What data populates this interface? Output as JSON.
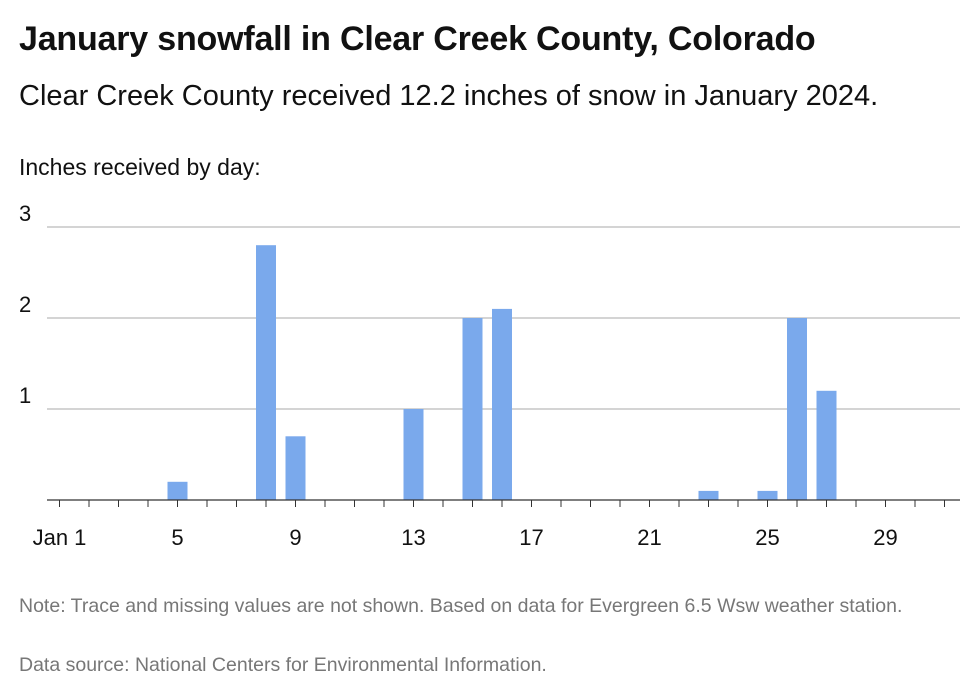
{
  "header": {
    "title": "January snowfall in Clear Creek County, Colorado",
    "subtitle": "Clear Creek County received 12.2 inches of snow in January 2024.",
    "caption": "Inches received by day:"
  },
  "footer": {
    "note": "Note: Trace and missing values are not shown. Based on data for Evergreen 6.5 Wsw weather station.",
    "source": "Data source: National Centers for Environmental Information."
  },
  "colors": {
    "bar": "#7aa9ec",
    "grid": "#bbbbbb",
    "axis": "#333333",
    "text": "#111111",
    "muted": "#777777"
  },
  "chart_data": {
    "type": "bar",
    "x": [
      1,
      2,
      3,
      4,
      5,
      6,
      7,
      8,
      9,
      10,
      11,
      12,
      13,
      14,
      15,
      16,
      17,
      18,
      19,
      20,
      21,
      22,
      23,
      24,
      25,
      26,
      27,
      28,
      29,
      30,
      31
    ],
    "values": [
      0,
      0,
      0,
      0,
      0.2,
      0,
      0,
      2.8,
      0.7,
      0,
      0,
      0,
      1.0,
      0,
      2.0,
      2.1,
      0,
      0,
      0,
      0,
      0,
      0,
      0.1,
      0,
      0.1,
      2.0,
      1.2,
      0,
      0,
      0,
      0
    ],
    "xticks": [
      1,
      5,
      9,
      13,
      17,
      21,
      25,
      29
    ],
    "xtick_labels": [
      "Jan 1",
      "5",
      "9",
      "13",
      "17",
      "21",
      "25",
      "29"
    ],
    "yticks": [
      1,
      2,
      3
    ],
    "ytick_labels": [
      "1",
      "2",
      "3"
    ],
    "ylim": [
      0,
      3
    ],
    "grid": true,
    "legend": "none"
  }
}
